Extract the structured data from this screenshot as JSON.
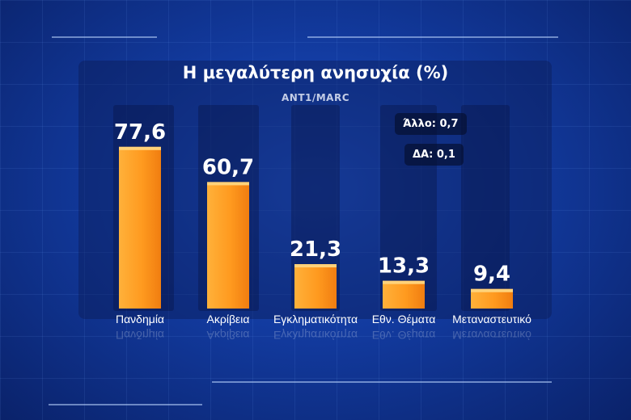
{
  "chart_data": {
    "type": "bar",
    "title": "Η μεγαλύτερη ανησυχία (%)",
    "subtitle": "ANT1/MARC",
    "categories": [
      "Πανδημία",
      "Ακρίβεια",
      "Εγκληματικότητα",
      "Εθν. Θέματα",
      "Μεταναστευτικό"
    ],
    "values": [
      77.6,
      60.7,
      21.3,
      13.3,
      9.4
    ],
    "value_labels": [
      "77,6",
      "60,7",
      "21,3",
      "13,3",
      "9,4"
    ],
    "notes": [
      "Άλλο: 0,7",
      "ΔΑ: 0,1"
    ],
    "ylim": [
      0,
      100
    ],
    "grid": false,
    "bar_color": "#ff9a1f"
  }
}
